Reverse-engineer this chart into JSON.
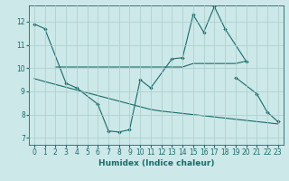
{
  "xlabel": "Humidex (Indice chaleur)",
  "background_color": "#cce8e8",
  "grid_color": "#aacccc",
  "line_color": "#1a6b6b",
  "xlim": [
    -0.5,
    23.5
  ],
  "ylim": [
    6.7,
    12.7
  ],
  "xticks": [
    0,
    1,
    2,
    3,
    4,
    5,
    6,
    7,
    8,
    9,
    10,
    11,
    12,
    13,
    14,
    15,
    16,
    17,
    18,
    19,
    20,
    21,
    22,
    23
  ],
  "yticks": [
    7,
    8,
    9,
    10,
    11,
    12
  ],
  "line1_x": [
    0,
    1,
    3,
    4,
    6,
    7,
    8,
    9,
    10,
    11,
    13,
    14,
    15,
    16,
    17,
    18,
    20
  ],
  "line1_y": [
    11.9,
    11.7,
    9.35,
    9.15,
    8.45,
    7.3,
    7.25,
    7.35,
    9.5,
    9.15,
    10.4,
    10.45,
    12.3,
    11.55,
    12.65,
    11.7,
    10.3
  ],
  "line2_x": [
    2,
    3,
    4,
    5,
    6,
    7,
    8,
    9,
    10,
    11,
    12,
    13,
    14,
    15,
    16,
    17,
    18,
    19,
    20
  ],
  "line2_y": [
    10.05,
    10.05,
    10.05,
    10.05,
    10.05,
    10.05,
    10.05,
    10.05,
    10.05,
    10.05,
    10.05,
    10.05,
    10.05,
    10.2,
    10.2,
    10.2,
    10.2,
    10.2,
    10.3
  ],
  "line3_x": [
    0,
    1,
    2,
    3,
    4,
    5,
    6,
    7,
    8,
    9,
    10,
    11,
    12,
    13,
    14,
    15,
    16,
    17,
    18,
    19,
    20,
    21,
    22,
    23
  ],
  "line3_y": [
    9.55,
    9.42,
    9.3,
    9.18,
    9.06,
    8.94,
    8.82,
    8.7,
    8.58,
    8.46,
    8.34,
    8.22,
    8.15,
    8.1,
    8.05,
    8.0,
    7.95,
    7.9,
    7.85,
    7.8,
    7.75,
    7.7,
    7.65,
    7.6
  ],
  "line4_x": [
    19,
    21,
    22,
    23
  ],
  "line4_y": [
    9.6,
    8.9,
    8.1,
    7.7
  ]
}
